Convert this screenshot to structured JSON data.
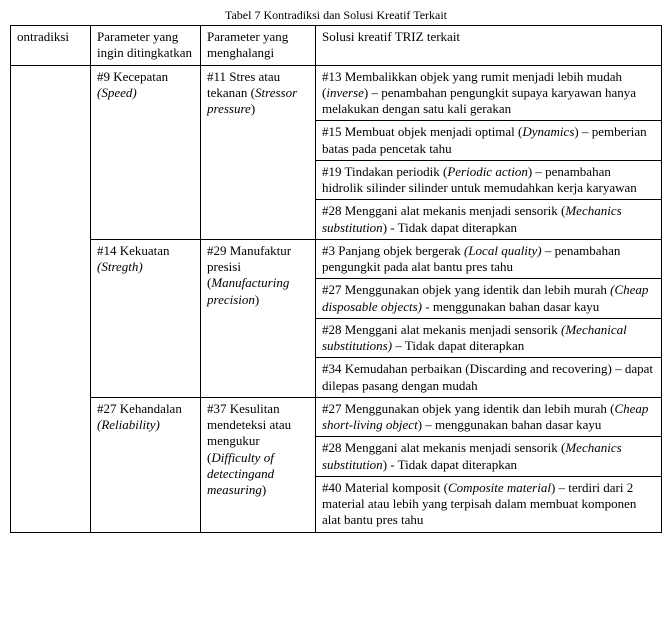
{
  "caption": "Tabel 7 Kontradiksi dan Solusi Kreatif Terkait",
  "headers": {
    "col1": "ontradiksi",
    "col2": "Parameter yang ingin ditingkatkan",
    "col3": "Parameter yang menghalangi",
    "col4": "Solusi kreatif TRIZ terkait"
  },
  "rows": [
    {
      "improve_num": "#9 Kecepatan",
      "improve_it": "(Speed)",
      "block_pre": "#11 Stres atau tekanan (",
      "block_it": "Stressor pressure",
      "block_post": ")",
      "solutions": [
        {
          "parts": [
            {
              "t": "#13 Membalikkan objek yang rumit menjadi lebih mudah ("
            },
            {
              "t": "inverse",
              "i": true
            },
            {
              "t": ") – penambahan pengungkit supaya karyawan hanya melakukan dengan satu kali gerakan"
            }
          ]
        },
        {
          "parts": [
            {
              "t": "#15 Membuat objek menjadi optimal ("
            },
            {
              "t": "Dynamics",
              "i": true
            },
            {
              "t": ") – pemberian batas pada pencetak tahu"
            }
          ]
        },
        {
          "parts": [
            {
              "t": "#19 Tindakan periodik ("
            },
            {
              "t": "Periodic action",
              "i": true
            },
            {
              "t": ") – penambahan hidrolik silinder silinder untuk memudahkan kerja karyawan"
            }
          ]
        },
        {
          "parts": [
            {
              "t": "#28 Menggani alat mekanis menjadi sensorik ("
            },
            {
              "t": "Mechanics substitution",
              "i": true
            },
            {
              "t": ") - Tidak dapat diterapkan"
            }
          ]
        }
      ]
    },
    {
      "improve_num": "#14 Kekuatan",
      "improve_it": "(Stregth)",
      "block_pre": "#29 Manufaktur presisi (",
      "block_it": "Manufacturing precision",
      "block_post": ")",
      "solutions": [
        {
          "parts": [
            {
              "t": "#3 Panjang objek bergerak "
            },
            {
              "t": "(Local quality)",
              "i": true
            },
            {
              "t": " – penambahan pengungkit pada alat bantu pres tahu"
            }
          ]
        },
        {
          "parts": [
            {
              "t": "#27 Menggunakan objek yang identik dan lebih murah "
            },
            {
              "t": "(Cheap disposable objects)",
              "i": true
            },
            {
              "t": " - menggunakan bahan dasar kayu"
            }
          ]
        },
        {
          "parts": [
            {
              "t": "#28 Menggani alat mekanis menjadi sensorik "
            },
            {
              "t": "(Mechanical substitutions)",
              "i": true
            },
            {
              "t": " – Tidak dapat diterapkan"
            }
          ]
        },
        {
          "parts": [
            {
              "t": "#34 Kemudahan perbaikan (Discarding and recovering) – dapat dilepas pasang dengan mudah"
            }
          ]
        }
      ]
    },
    {
      "improve_num": "#27 Kehandalan",
      "improve_it": "(Reliability)",
      "block_pre": "#37 Kesulitan mendeteksi atau mengukur (",
      "block_it": "Difficulty of detectingand measuring",
      "block_post": ")",
      "solutions": [
        {
          "parts": [
            {
              "t": "#27 Menggunakan objek yang identik dan lebih murah ("
            },
            {
              "t": "Cheap short-living object",
              "i": true
            },
            {
              "t": ") – menggunakan bahan dasar kayu"
            }
          ]
        },
        {
          "parts": [
            {
              "t": "#28 Menggani alat mekanis menjadi sensorik ("
            },
            {
              "t": "Mechanics substitution",
              "i": true
            },
            {
              "t": ") - Tidak dapat diterapkan"
            }
          ]
        },
        {
          "parts": [
            {
              "t": "#40 Material komposit ("
            },
            {
              "t": "Composite material",
              "i": true
            },
            {
              "t": ") – terdiri dari 2 material atau lebih yang terpisah dalam membuat komponen alat bantu pres tahu"
            }
          ]
        }
      ]
    }
  ]
}
